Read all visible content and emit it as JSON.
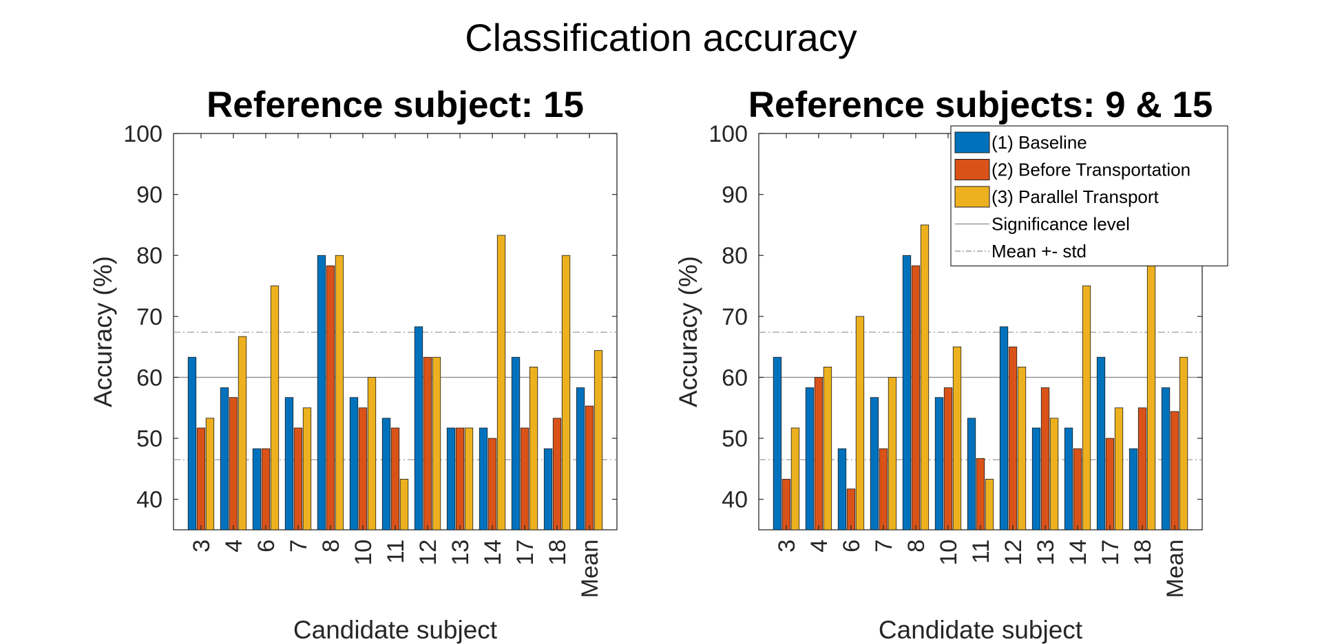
{
  "figure": {
    "title": "Classification accuracy"
  },
  "legend": {
    "placement": "top-right",
    "items": [
      {
        "label": "(1) Baseline",
        "kind": "bar",
        "color": "#0072BD"
      },
      {
        "label": "(2) Before Transportation",
        "kind": "bar",
        "color": "#D95319"
      },
      {
        "label": "(3) Parallel Transport",
        "kind": "bar",
        "color": "#EDB120"
      },
      {
        "label": "Significance level",
        "kind": "line-solid",
        "color": "#8c8c8c"
      },
      {
        "label": "Mean +- std",
        "kind": "line-dashdot",
        "color": "#8c8c8c"
      }
    ]
  },
  "chart_data": [
    {
      "type": "bar",
      "title": "Reference subject: 15",
      "xlabel": "Candidate subject",
      "ylabel": "Accuracy (%)",
      "ylim": [
        35,
        100
      ],
      "yticks": [
        40,
        50,
        60,
        70,
        80,
        90,
        100
      ],
      "grid": false,
      "categories": [
        "3",
        "4",
        "6",
        "7",
        "8",
        "10",
        "11",
        "12",
        "13",
        "14",
        "17",
        "18",
        "Mean"
      ],
      "series": [
        {
          "name": "(1) Baseline",
          "color": "#0072BD",
          "values": [
            63.3,
            58.3,
            48.3,
            56.7,
            80.0,
            56.7,
            53.3,
            68.3,
            51.7,
            51.7,
            63.3,
            48.3,
            58.3
          ]
        },
        {
          "name": "(2) Before Transportation",
          "color": "#D95319",
          "values": [
            51.7,
            56.7,
            48.3,
            51.7,
            78.3,
            55.0,
            51.7,
            63.3,
            51.7,
            50.0,
            51.7,
            53.3,
            55.3
          ]
        },
        {
          "name": "(3) Parallel Transport",
          "color": "#EDB120",
          "values": [
            53.3,
            66.7,
            75.0,
            55.0,
            80.0,
            60.0,
            43.3,
            63.3,
            51.7,
            83.3,
            61.7,
            80.0,
            64.4
          ]
        }
      ],
      "reference_lines": {
        "significance": 60,
        "mean_plus_std": 67.4,
        "mean_minus_std": 46.5
      }
    },
    {
      "type": "bar",
      "title": "Reference subjects: 9 & 15",
      "xlabel": "Candidate subject",
      "ylabel": "Accuracy (%)",
      "ylim": [
        35,
        100
      ],
      "yticks": [
        40,
        50,
        60,
        70,
        80,
        90,
        100
      ],
      "grid": false,
      "categories": [
        "3",
        "4",
        "6",
        "7",
        "8",
        "10",
        "11",
        "12",
        "13",
        "14",
        "17",
        "18",
        "Mean"
      ],
      "series": [
        {
          "name": "(1) Baseline",
          "color": "#0072BD",
          "values": [
            63.3,
            58.3,
            48.3,
            56.7,
            80.0,
            56.7,
            53.3,
            68.3,
            51.7,
            51.7,
            63.3,
            48.3,
            58.3
          ]
        },
        {
          "name": "(2) Before Transportation",
          "color": "#D95319",
          "values": [
            43.3,
            60.0,
            41.7,
            48.3,
            78.3,
            58.3,
            46.7,
            65.0,
            58.3,
            48.3,
            50.0,
            55.0,
            54.4
          ]
        },
        {
          "name": "(3) Parallel Transport",
          "color": "#EDB120",
          "values": [
            51.7,
            61.7,
            70.0,
            60.0,
            85.0,
            65.0,
            43.3,
            61.7,
            53.3,
            75.0,
            55.0,
            78.3,
            63.3
          ]
        }
      ],
      "reference_lines": {
        "significance": 60,
        "mean_plus_std": 67.4,
        "mean_minus_std": 46.5
      }
    }
  ]
}
